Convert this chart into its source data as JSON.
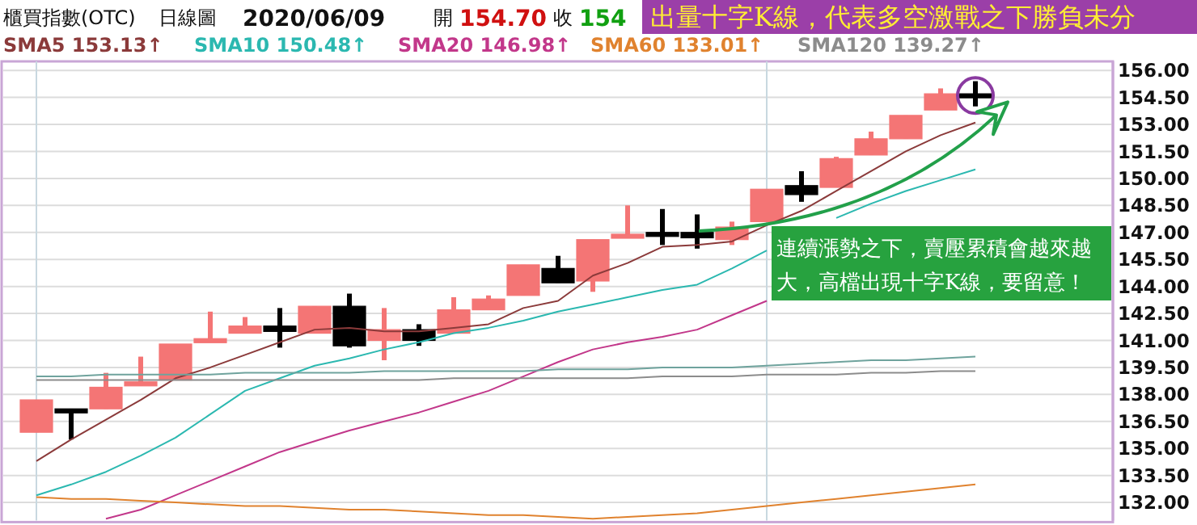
{
  "chart_data": {
    "type": "candlestick",
    "title": "櫃買指數(OTC)",
    "subtitle": "日線圖",
    "annotations": [
      "2020/06/09",
      "開",
      "154.70",
      "收",
      "154",
      "出量十字K線，代表多空激戰之下勝負未分",
      "連續漲勢之下，賣壓累積會越來越大，高檔出現十字K線，要留意！"
    ],
    "categories": [
      null,
      null,
      null,
      null,
      null,
      null,
      null,
      null,
      null,
      null,
      null,
      null,
      null,
      null,
      null,
      null,
      null,
      null,
      null,
      null,
      null,
      null,
      null,
      null,
      null,
      null,
      null,
      null
    ],
    "ohlc": [
      [
        135.9,
        137.7,
        135.9,
        137.7
      ],
      [
        137.2,
        137.2,
        135.5,
        137.1
      ],
      [
        137.2,
        139.2,
        137.2,
        138.4
      ],
      [
        138.5,
        140.1,
        138.5,
        138.7
      ],
      [
        138.8,
        140.8,
        138.8,
        140.8
      ],
      [
        141.0,
        142.6,
        141.0,
        141.1
      ],
      [
        141.4,
        142.3,
        141.4,
        141.8
      ],
      [
        141.8,
        142.8,
        140.6,
        141.5
      ],
      [
        141.4,
        142.9,
        141.4,
        142.9
      ],
      [
        142.9,
        143.6,
        140.6,
        140.7
      ],
      [
        141.0,
        142.8,
        139.9,
        141.6
      ],
      [
        141.6,
        141.9,
        140.7,
        141.0
      ],
      [
        141.4,
        143.4,
        141.4,
        142.7
      ],
      [
        142.7,
        143.5,
        142.7,
        143.3
      ],
      [
        143.5,
        145.2,
        143.5,
        145.2
      ],
      [
        145.0,
        145.7,
        144.2,
        144.2
      ],
      [
        144.3,
        146.6,
        143.7,
        146.6
      ],
      [
        146.8,
        148.5,
        146.8,
        146.9
      ],
      [
        147.0,
        148.3,
        146.3,
        146.9
      ],
      [
        147.0,
        148.0,
        146.1,
        146.7
      ],
      [
        146.6,
        147.6,
        146.3,
        147.3
      ],
      [
        147.6,
        149.4,
        147.6,
        149.4
      ],
      [
        149.6,
        150.4,
        148.7,
        149.1
      ],
      [
        149.5,
        151.2,
        149.5,
        151.1
      ],
      [
        151.3,
        152.6,
        151.3,
        152.2
      ],
      [
        152.2,
        153.5,
        152.2,
        153.5
      ],
      [
        153.8,
        155.0,
        153.8,
        154.7
      ],
      [
        154.7,
        155.4,
        154.0,
        154.6
      ]
    ],
    "colors": [
      "#f47575",
      "#000000",
      "#f47575",
      "#f47575",
      "#f47575",
      "#f47575",
      "#f47575",
      "#000000",
      "#f47575",
      "#000000",
      "#f47575",
      "#000000",
      "#f47575",
      "#f47575",
      "#f47575",
      "#000000",
      "#f47575",
      "#f47575",
      "#000000",
      "#000000",
      "#f47575",
      "#f47575",
      "#000000",
      "#f47575",
      "#f47575",
      "#f47575",
      "#f47575",
      "#000000"
    ],
    "series": [
      {
        "type": "line",
        "name": "SMA5 153.13↑",
        "color": "#8b3a3a",
        "values": [
          134.3,
          135.5,
          136.6,
          137.7,
          138.9,
          139.5,
          140.2,
          140.9,
          141.6,
          141.7,
          141.5,
          141.5,
          141.7,
          141.9,
          142.8,
          143.2,
          144.6,
          145.3,
          146.2,
          146.3,
          146.5,
          147.4,
          148.2,
          149.3,
          150.4,
          151.5,
          152.4,
          153.1
        ]
      },
      {
        "type": "line",
        "name": "SMA10 150.48↑",
        "color": "#2bb8b0",
        "values": [
          132.4,
          133.0,
          133.7,
          134.6,
          135.6,
          136.9,
          138.2,
          138.9,
          139.6,
          140.0,
          140.5,
          140.9,
          141.4,
          141.7,
          142.1,
          142.6,
          143.0,
          143.4,
          143.8,
          144.1,
          145.0,
          146.0,
          null,
          147.8,
          148.6,
          149.3,
          149.9,
          150.5
        ]
      },
      {
        "type": "line",
        "name": "SMA20 146.98↑",
        "color": "#c2378a",
        "values": [
          null,
          null,
          131.1,
          131.6,
          132.4,
          133.2,
          134.0,
          134.8,
          135.4,
          136.0,
          136.5,
          137.0,
          137.6,
          138.2,
          139.0,
          139.8,
          140.5,
          140.9,
          141.2,
          141.6,
          142.4,
          143.2,
          null,
          null,
          null,
          null,
          null,
          null
        ]
      },
      {
        "type": "line",
        "name": "SMA60 133.01↑",
        "color": "#e0822e",
        "values": [
          132.3,
          132.2,
          132.2,
          132.1,
          132.0,
          131.9,
          131.8,
          131.8,
          131.7,
          131.6,
          131.6,
          131.5,
          131.4,
          131.3,
          131.3,
          131.2,
          131.1,
          131.2,
          131.3,
          131.4,
          131.6,
          131.8,
          132.0,
          132.2,
          132.4,
          132.6,
          132.8,
          133.0
        ]
      },
      {
        "type": "line",
        "name": "SMA120 139.27↑",
        "color": "#8c8c8c",
        "values": [
          138.8,
          138.8,
          138.8,
          138.8,
          138.8,
          138.8,
          138.8,
          138.8,
          138.8,
          138.8,
          138.8,
          138.8,
          138.9,
          138.9,
          138.9,
          138.9,
          138.9,
          138.9,
          139.0,
          139.0,
          139.0,
          139.1,
          139.1,
          139.1,
          139.2,
          139.2,
          139.3,
          139.3
        ]
      },
      {
        "type": "line",
        "color": "#6fa39d",
        "values": [
          139.0,
          139.0,
          139.1,
          139.1,
          139.1,
          139.1,
          139.2,
          139.2,
          139.2,
          139.2,
          139.3,
          139.3,
          139.3,
          139.3,
          139.3,
          139.4,
          139.4,
          139.4,
          139.5,
          139.5,
          139.5,
          139.6,
          139.7,
          139.8,
          139.9,
          139.9,
          140.0,
          140.1
        ]
      }
    ],
    "ylim": [
      131,
      156.5
    ],
    "yticks": [
      {
        "value": 132,
        "label": "132.00"
      },
      {
        "value": 133.5,
        "label": "133.50"
      },
      {
        "value": 135,
        "label": "135.00"
      },
      {
        "value": 136.5,
        "label": "136.50"
      },
      {
        "value": 138,
        "label": "138.00"
      },
      {
        "value": 139.5,
        "label": "139.50"
      },
      {
        "value": 141,
        "label": "141.00"
      },
      {
        "value": 142.5,
        "label": "142.50"
      },
      {
        "value": 144,
        "label": "144.00"
      },
      {
        "value": 145.5,
        "label": "145.50"
      },
      {
        "value": 147,
        "label": "147.00"
      },
      {
        "value": 148.5,
        "label": "148.50"
      },
      {
        "value": 150,
        "label": "150.00"
      },
      {
        "value": 151.5,
        "label": "151.50"
      },
      {
        "value": 153,
        "label": "153.00"
      },
      {
        "value": 154.5,
        "label": "154.50"
      },
      {
        "value": 156,
        "label": "156.00"
      }
    ],
    "grid": "y",
    "legend": "top",
    "tick_labels": "y"
  }
}
